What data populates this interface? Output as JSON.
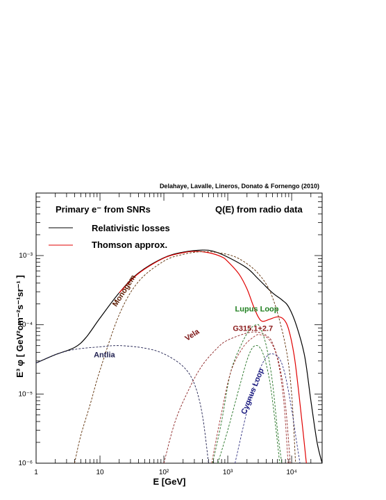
{
  "chart_data": {
    "type": "line",
    "credit": "Delahaye, Lavalle, Lineros, Donato & Fornengo (2010)",
    "title_left": "Primary e⁻ from SNRs",
    "title_right": "Q(E) from radio data",
    "xlabel": "E [GeV]",
    "ylabel": "E³ φ  [ GeV²cm⁻²s⁻¹sr⁻¹ ]",
    "xscale": "log",
    "yscale": "log",
    "xlim": [
      1,
      30000
    ],
    "ylim": [
      1e-06,
      0.008
    ],
    "grid": false,
    "legend_position": "top-left",
    "x_tick_labels": [
      {
        "v": 1,
        "label": "1"
      },
      {
        "v": 10,
        "label": "10"
      },
      {
        "v": 100,
        "label": "10²"
      },
      {
        "v": 1000,
        "label": "10³"
      },
      {
        "v": 10000,
        "label": "10⁴"
      }
    ],
    "y_tick_labels": [
      {
        "v": 1e-06,
        "label": "10⁻⁶"
      },
      {
        "v": 1e-05,
        "label": "10⁻⁵"
      },
      {
        "v": 0.0001,
        "label": "10⁻⁴"
      },
      {
        "v": 0.001,
        "label": "10⁻³"
      }
    ],
    "legend": [
      {
        "label": "Relativistic losses",
        "color": "#000000",
        "dash": "solid"
      },
      {
        "label": "Thomson approx.",
        "color": "#e00000",
        "dash": "solid"
      }
    ],
    "series": [
      {
        "name": "Relativistic losses",
        "color": "#000000",
        "dash": "solid",
        "points": [
          [
            1,
            2.8e-05
          ],
          [
            2,
            3.7e-05
          ],
          [
            4,
            4.7e-05
          ],
          [
            6,
            6.5e-05
          ],
          [
            10,
            0.000125
          ],
          [
            20,
            0.00029
          ],
          [
            40,
            0.00056
          ],
          [
            100,
            0.00093
          ],
          [
            200,
            0.00112
          ],
          [
            400,
            0.0012
          ],
          [
            600,
            0.00115
          ],
          [
            1000,
            0.00095
          ],
          [
            2000,
            0.00066
          ],
          [
            3000,
            0.00046
          ],
          [
            5000,
            0.00029
          ],
          [
            7000,
            0.00023
          ],
          [
            9000,
            0.00018
          ],
          [
            12000,
            9.5e-05
          ],
          [
            16000,
            3.5e-05
          ],
          [
            20000,
            8e-06
          ],
          [
            25000,
            2e-06
          ],
          [
            30000,
            1e-06
          ]
        ]
      },
      {
        "name": "Thomson approx.",
        "color": "#e00000",
        "dash": "solid",
        "points": [
          [
            20,
            0.00029
          ],
          [
            40,
            0.00055
          ],
          [
            100,
            0.00092
          ],
          [
            200,
            0.0011
          ],
          [
            300,
            0.00115
          ],
          [
            500,
            0.0011
          ],
          [
            800,
            0.00096
          ],
          [
            1000,
            0.00082
          ],
          [
            1500,
            0.00054
          ],
          [
            2000,
            0.00033
          ],
          [
            2500,
            0.00019
          ],
          [
            3000,
            0.00013
          ],
          [
            3500,
            0.000112
          ],
          [
            4500,
            0.00012
          ],
          [
            6000,
            0.00013
          ],
          [
            7500,
            0.00012
          ],
          [
            9000,
            8.5e-05
          ],
          [
            11000,
            3.5e-05
          ],
          [
            13000,
            1e-05
          ],
          [
            15000,
            3e-06
          ],
          [
            17000,
            1e-06
          ]
        ]
      },
      {
        "name": "Monogem",
        "color": "#5a2a00",
        "dash": "dashed",
        "points": [
          [
            4,
            1e-06
          ],
          [
            5,
            2.5e-06
          ],
          [
            7,
            7e-06
          ],
          [
            10,
            2.2e-05
          ],
          [
            20,
            0.00014
          ],
          [
            40,
            0.00042
          ],
          [
            100,
            0.00083
          ],
          [
            200,
            0.00104
          ],
          [
            400,
            0.00114
          ],
          [
            800,
            0.00108
          ],
          [
            1500,
            0.0009
          ],
          [
            3000,
            0.00055
          ],
          [
            5000,
            0.00025
          ],
          [
            8000,
            5e-05
          ],
          [
            10000,
            1e-05
          ],
          [
            11500,
            1e-06
          ]
        ]
      },
      {
        "name": "Antlia",
        "color": "#202050",
        "dash": "dashed",
        "points": [
          [
            1,
            2.8e-05
          ],
          [
            2,
            3.7e-05
          ],
          [
            4,
            4.4e-05
          ],
          [
            10,
            4.8e-05
          ],
          [
            20,
            5e-05
          ],
          [
            50,
            4.6e-05
          ],
          [
            100,
            3.8e-05
          ],
          [
            200,
            2.5e-05
          ],
          [
            300,
            1.4e-05
          ],
          [
            400,
            5e-06
          ],
          [
            500,
            1e-06
          ]
        ]
      },
      {
        "name": "Vela",
        "color": "#8a2020",
        "dash": "dashed",
        "points": [
          [
            100,
            1e-06
          ],
          [
            150,
            4e-06
          ],
          [
            250,
            1.2e-05
          ],
          [
            400,
            2.6e-05
          ],
          [
            700,
            4.7e-05
          ],
          [
            1000,
            6e-05
          ],
          [
            2000,
            7.6e-05
          ],
          [
            3000,
            7.8e-05
          ],
          [
            4000,
            7e-05
          ],
          [
            5000,
            5.5e-05
          ],
          [
            6500,
            2.5e-05
          ],
          [
            8000,
            7e-06
          ],
          [
            9500,
            1e-06
          ]
        ]
      },
      {
        "name": "Lupus Loop",
        "color": "#207020",
        "dash": "dashed",
        "points": [
          [
            580,
            1e-06
          ],
          [
            800,
            4e-06
          ],
          [
            1100,
            2e-05
          ],
          [
            1600,
            5e-05
          ],
          [
            2200,
            8.5e-05
          ],
          [
            2800,
            0.0001
          ],
          [
            3200,
            9.2e-05
          ],
          [
            4000,
            5e-05
          ],
          [
            5000,
            1.5e-05
          ],
          [
            6000,
            3e-06
          ],
          [
            7000,
            1e-06
          ]
        ]
      },
      {
        "name": "G315.1+2.7",
        "color": "#a03030",
        "dash": "dashed",
        "points": [
          [
            560,
            1e-06
          ],
          [
            750,
            4e-06
          ],
          [
            1100,
            2e-05
          ],
          [
            1700,
            4.6e-05
          ],
          [
            2500,
            6.6e-05
          ],
          [
            3200,
            7.2e-05
          ],
          [
            4500,
            6e-05
          ],
          [
            6000,
            3.2e-05
          ],
          [
            7500,
            8e-06
          ],
          [
            8800,
            1e-06
          ]
        ]
      },
      {
        "name": "Cygnus Loop",
        "color": "#303080",
        "dash": "dashed",
        "points": [
          [
            1300,
            1e-06
          ],
          [
            1700,
            3e-06
          ],
          [
            2200,
            8e-06
          ],
          [
            3000,
            2e-05
          ],
          [
            4000,
            3.4e-05
          ],
          [
            5000,
            3.8e-05
          ],
          [
            6500,
            3.2e-05
          ],
          [
            8000,
            1.8e-05
          ],
          [
            10000,
            6e-06
          ],
          [
            12000,
            2e-06
          ],
          [
            13500,
            1e-06
          ]
        ]
      },
      {
        "name": "Vela (green)",
        "color": "#207020",
        "dash": "dashed",
        "points": [
          [
            700,
            1e-06
          ],
          [
            1000,
            3e-06
          ],
          [
            1500,
            1.2e-05
          ],
          [
            2100,
            3.5e-05
          ],
          [
            2700,
            5e-05
          ],
          [
            3500,
            4e-05
          ],
          [
            4500,
            1.6e-05
          ],
          [
            5500,
            4e-06
          ],
          [
            6500,
            1e-06
          ]
        ]
      }
    ],
    "annotations": [
      {
        "text": "Monogem",
        "x": 18,
        "y": 0.00018,
        "rotate": -57,
        "color": "#5a1a00"
      },
      {
        "text": "Antlia",
        "x": 8,
        "y": 3.4e-05,
        "rotate": 0,
        "color": "#202050"
      },
      {
        "text": "Vela",
        "x": 230,
        "y": 5.8e-05,
        "rotate": -33,
        "color": "#7a1010"
      },
      {
        "text": "Lupus Loop",
        "x": 1300,
        "y": 0.000155,
        "rotate": 0,
        "color": "#208020"
      },
      {
        "text": "G315.1+2.7",
        "x": 1200,
        "y": 8.2e-05,
        "rotate": 0,
        "color": "#8a1a1a"
      },
      {
        "text": "Cygnus Loop",
        "x": 1900,
        "y": 5e-06,
        "rotate": -68,
        "color": "#1a1a80"
      }
    ]
  }
}
